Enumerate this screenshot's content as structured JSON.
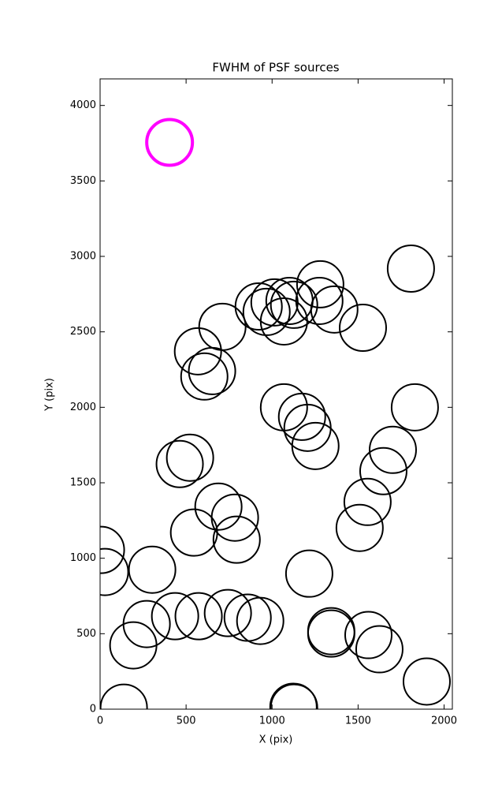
{
  "chart_data": {
    "type": "scatter",
    "title": "FWHM of PSF sources",
    "x_label": "X (pix)",
    "y_label": "Y (pix)",
    "xlim": [
      0,
      2048
    ],
    "ylim": [
      0,
      4176
    ],
    "xticks": [
      0,
      500,
      1000,
      1500,
      2000
    ],
    "yticks": [
      0,
      500,
      1000,
      1500,
      2000,
      2500,
      3000,
      3500,
      4000
    ],
    "series": [
      {
        "color": "#000000",
        "x": [
          138,
          1128,
          1124,
          1899,
          1624,
          1560,
          1344,
          1344,
          193,
          271,
          436,
          573,
          743,
          858,
          931,
          28,
          5,
          303,
          1216,
          1509,
          1555,
          1647,
          1702,
          546,
          688,
          784,
          794,
          463,
          523,
          1069,
          1174,
          1206,
          1252,
          1830,
          606,
          651,
          569,
          711,
          922,
          968,
          1014,
          1069,
          1101,
          1128,
          1275,
          1362,
          1280,
          1528,
          1807
        ],
        "values": [
          10,
          10,
          16,
          183,
          397,
          491,
          501,
          517,
          423,
          564,
          616,
          616,
          637,
          606,
          585,
          909,
          1055,
          924,
          898,
          1201,
          1373,
          1577,
          1718,
          1170,
          1342,
          1269,
          1123,
          1624,
          1666,
          2000,
          1937,
          1864,
          1744,
          2000,
          2204,
          2240,
          2371,
          2533,
          2668,
          2632,
          2695,
          2569,
          2705,
          2679,
          2705,
          2648,
          2815,
          2527,
          2919
        ]
      },
      {
        "color": "#ff00ff",
        "x": [
          404
        ],
        "values": [
          3755
        ]
      }
    ]
  }
}
